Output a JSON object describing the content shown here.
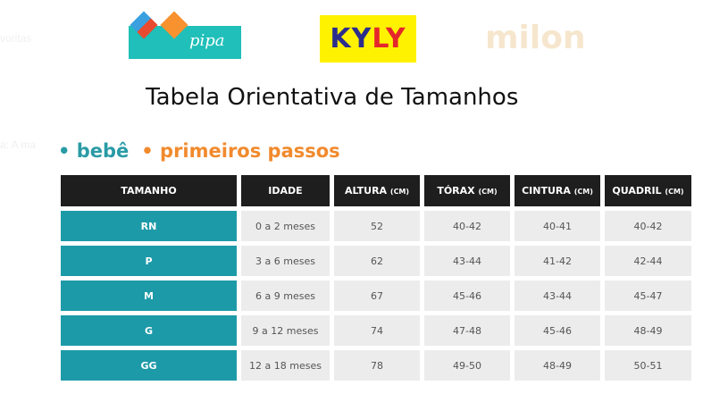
{
  "background_text": [
    "voritas",
    "a: A ma"
  ],
  "logos": [
    "pipa",
    "KYLY",
    "milon"
  ],
  "title": "Tabela Orientativa de Tamanhos",
  "categories": [
    "• bebê",
    "• primeiros passos"
  ],
  "colors": {
    "teal": "#1d9aa8",
    "orange": "#f18a2d",
    "header": "#1e1e1e"
  },
  "table": {
    "headers": [
      {
        "label": "TAMANHO",
        "unit": ""
      },
      {
        "label": "IDADE",
        "unit": ""
      },
      {
        "label": "ALTURA",
        "unit": "(CM)"
      },
      {
        "label": "TÓRAX",
        "unit": "(CM)"
      },
      {
        "label": "CINTURA",
        "unit": "(CM)"
      },
      {
        "label": "QUADRIL",
        "unit": "(CM)"
      }
    ],
    "rows": [
      [
        "RN",
        "0 a 2 meses",
        "52",
        "40-42",
        "40-41",
        "40-42"
      ],
      [
        "P",
        "3 a 6 meses",
        "62",
        "43-44",
        "41-42",
        "42-44"
      ],
      [
        "M",
        "6 a 9 meses",
        "67",
        "45-46",
        "43-44",
        "45-47"
      ],
      [
        "G",
        "9 a 12 meses",
        "74",
        "47-48",
        "45-46",
        "48-49"
      ],
      [
        "GG",
        "12 a 18 meses",
        "78",
        "49-50",
        "48-49",
        "50-51"
      ]
    ]
  }
}
